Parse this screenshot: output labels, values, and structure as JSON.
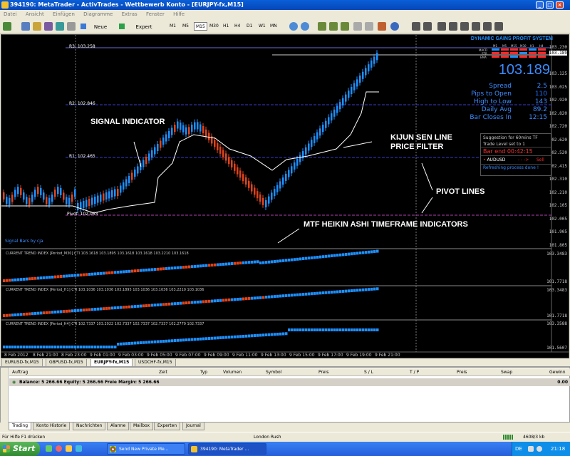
{
  "window": {
    "title": "394190: MetaTrader - ActivTrades - Wettbewerb Konto - [EURJPY-fx,M15]"
  },
  "menu": [
    "Datei",
    "Ansicht",
    "Einfügen",
    "Diagramme",
    "Extras",
    "Fenster",
    "Hilfe"
  ],
  "toolbar": {
    "new_order": "Neue Order",
    "expert_advisors": "Expert Advisors",
    "timeframes": [
      "M1",
      "M5",
      "M15",
      "M30",
      "H1",
      "H4",
      "D1",
      "W1",
      "MN"
    ],
    "active_tf": "M15"
  },
  "chart": {
    "annotations": {
      "signal": "SIGNAL INDICATOR",
      "kijun1": "KIJUN SEN LINE",
      "kijun2": "PRICE FILTER",
      "pivot": "PIVOT LINES",
      "mtf": "MTF HEIKIN ASHI TIMEFRAME INDICATORS"
    },
    "pivots": {
      "r3": "R3: 103.258",
      "r2": "R2: 102.846",
      "r1": "R1: 102.465",
      "pivot": "Pivot: 102.063"
    },
    "signal_bars": "Signal Bars by cja",
    "price_axis": [
      "103.230",
      "103.189",
      "103.125",
      "103.025",
      "102.920",
      "102.820",
      "102.720",
      "102.620",
      "102.520",
      "102.415",
      "102.310",
      "102.210",
      "102.105",
      "102.005",
      "101.905",
      "101.805"
    ],
    "time_axis": [
      "8 Feb 2012",
      "8 Feb 21:00",
      "8 Feb 23:00",
      "9 Feb 01:00",
      "9 Feb 03:00",
      "9 Feb 05:00",
      "9 Feb 07:00",
      "9 Feb 09:00",
      "9 Feb 11:00",
      "9 Feb 13:00",
      "9 Feb 15:00",
      "9 Feb 17:00",
      "9 Feb 19:00",
      "9 Feb 21:00"
    ],
    "subwindows": [
      {
        "header": "CURRENT TREND INDEX [Period_M30] CTI 103.1618 103.1895 103.1618 103.1618 103.2210 103.1618",
        "top": "103.3483",
        "bottom": "101.7718"
      },
      {
        "header": "CURRENT TREND INDEX [Period_H1] CTI 103.1036 103.1036 103.1895 103.1036 103.1036 103.2210 103.1036",
        "top": "103.3483",
        "bottom": "101.7718"
      },
      {
        "header": "CURRENT TREND INDEX [Period_H4] CTI 102.7337 103.2022 102.7337 102.7337 102.7337 102.2779 102.7337",
        "top": "103.3588",
        "bottom": "101.5607"
      }
    ]
  },
  "dashboard": {
    "title": "DYNAMIC GAINS PROFIT SYSTEM",
    "tfs": [
      "M1",
      "M5",
      "M15",
      "M30",
      "H1",
      "H4"
    ],
    "rows": [
      "MACD",
      "STR",
      "EMA"
    ],
    "price": "103.189",
    "stats": [
      {
        "label": "Spread",
        "value": "2.5"
      },
      {
        "label": "Pips to Open",
        "value": "110"
      },
      {
        "label": "High to Low",
        "value": "143"
      },
      {
        "label": "Daily Avg",
        "value": "89.2"
      },
      {
        "label": "Bar Closes In",
        "value": "12:15"
      }
    ],
    "colors": {
      "price": "#3b8cff",
      "accent": "#1e90ff",
      "sell": "#ff2a2a"
    }
  },
  "suggestion": {
    "line1": "Suggestion for 60mins TF",
    "line2": "Trade Level set to 1",
    "bar_end": "Bar end  00:42:15",
    "pair": "AUDUSD",
    "action": "Sell",
    "refresh": "Refreshing process done !"
  },
  "chart_tabs": [
    "EURUSD-fx,M15",
    "GBPUSD-fx,M15",
    "EURJPY-fx,M15",
    "USDCHF-fx,M15"
  ],
  "active_chart_tab": "EURJPY-fx,M15",
  "terminal": {
    "columns": [
      "Auftrag",
      "Zeit",
      "Typ",
      "Volumen",
      "Symbol",
      "Preis",
      "S / L",
      "T / P",
      "Preis",
      "Swap",
      "Gewinn"
    ],
    "balance": "Balance: 5 266.66  Equity: 5 266.66  Freie Margin: 5 266.66",
    "profit": "0.00",
    "tabs": [
      "Trading",
      "Konto Historie",
      "Nachrichten",
      "Alarme",
      "Mailbox",
      "Experten",
      "Journal"
    ]
  },
  "status": {
    "help": "Für Hilfe F1 drücken",
    "profile": "London Rush",
    "traffic": "4608/3 kb"
  },
  "taskbar": {
    "start": "Start",
    "tasks": [
      "Send New Private Me...",
      "394190: MetaTrader ..."
    ],
    "lang": "DE",
    "clock": "21:18"
  }
}
